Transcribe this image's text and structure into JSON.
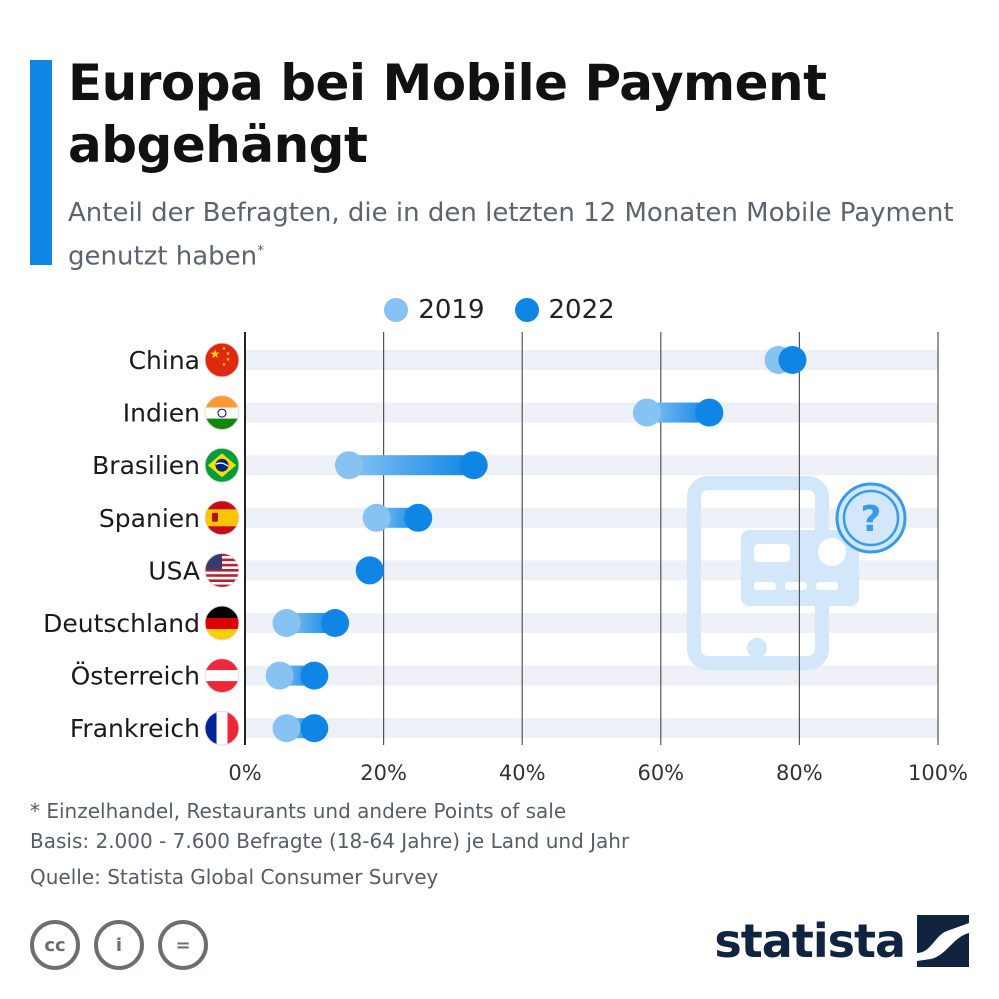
{
  "header": {
    "title": "Europa bei Mobile Payment abgehängt",
    "subtitle": "Anteil der Befragten, die in den letzten 12 Monaten Mobile Payment genutzt haben",
    "subtitle_mark": "*"
  },
  "colors": {
    "accent": "#0f85e6",
    "dot_2019": "#86c2f2",
    "dot_2022": "#0f85e6",
    "row_band": "#edf1f7",
    "illustration": "#d2e7f9"
  },
  "legend": [
    {
      "label": "2019",
      "color": "#86c2f2"
    },
    {
      "label": "2022",
      "color": "#0f85e6"
    }
  ],
  "chart_data": {
    "type": "dumbbell",
    "categories": [
      "China",
      "Indien",
      "Brasilien",
      "Spanien",
      "USA",
      "Deutschland",
      "Österreich",
      "Frankreich"
    ],
    "series": [
      {
        "name": "2019",
        "values": [
          77,
          58,
          15,
          19,
          18,
          6,
          5,
          6
        ]
      },
      {
        "name": "2022",
        "values": [
          79,
          67,
          33,
          25,
          18,
          13,
          10,
          10
        ]
      }
    ],
    "xlim": [
      0,
      100
    ],
    "x_ticks": [
      0,
      20,
      40,
      60,
      80,
      100
    ],
    "x_tick_labels": [
      "0%",
      "20%",
      "40%",
      "60%",
      "80%",
      "100%"
    ],
    "grid": true,
    "legend_position": "top-center"
  },
  "flags": [
    "china-flag-icon",
    "india-flag-icon",
    "brazil-flag-icon",
    "spain-flag-icon",
    "usa-flag-icon",
    "germany-flag-icon",
    "austria-flag-icon",
    "france-flag-icon"
  ],
  "illustration": "mobile-payment-question-icon",
  "footer": {
    "note": "* Einzelhandel, Restaurants und andere Points of sale",
    "basis": "Basis: 2.000 - 7.600 Befragte (18-64 Jahre) je Land und Jahr",
    "source": "Quelle: Statista Global Consumer Survey",
    "license_icons": [
      {
        "name": "cc-icon",
        "label": "cc"
      },
      {
        "name": "by-icon",
        "label": "i"
      },
      {
        "name": "nd-icon",
        "label": "="
      }
    ],
    "brand": "statista"
  }
}
